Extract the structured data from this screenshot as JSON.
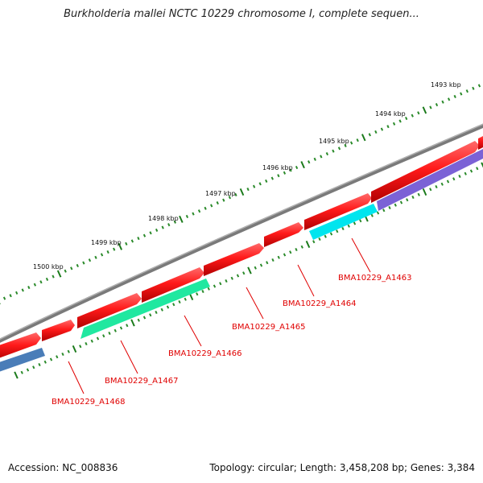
{
  "title": "Burkholderia mallei NCTC 10229 chromosome I, complete sequen...",
  "footer": {
    "accession": "Accession: NC_008836",
    "stats": "Topology: circular; Length: 3,458,208 bp; Genes: 3,384"
  },
  "colors": {
    "backbone": "#808080",
    "forward_gene": "#ff1a1a",
    "tick_major": "#1a7a1a",
    "tick_minor": "#2a8a2a",
    "label": "#e00000"
  },
  "scale_labels": [
    "1493 kbp",
    "1494 kbp",
    "1495 kbp",
    "1496 kbp",
    "1497 kbp",
    "1498 kbp",
    "1499 kbp",
    "1500 kbp"
  ],
  "gene_labels": [
    "BMA10229_A1463",
    "BMA10229_A1464",
    "BMA10229_A1465",
    "BMA10229_A1466",
    "BMA10229_A1467",
    "BMA10229_A1468"
  ],
  "reverse_gene_colors": {
    "BMA10229_A1463": "#00e5ee",
    "BMA10229_A1467": "#20e8a0",
    "BMA10229_A1468": "#4a7db8",
    "unlabeled_purple": "#7b62d6"
  }
}
